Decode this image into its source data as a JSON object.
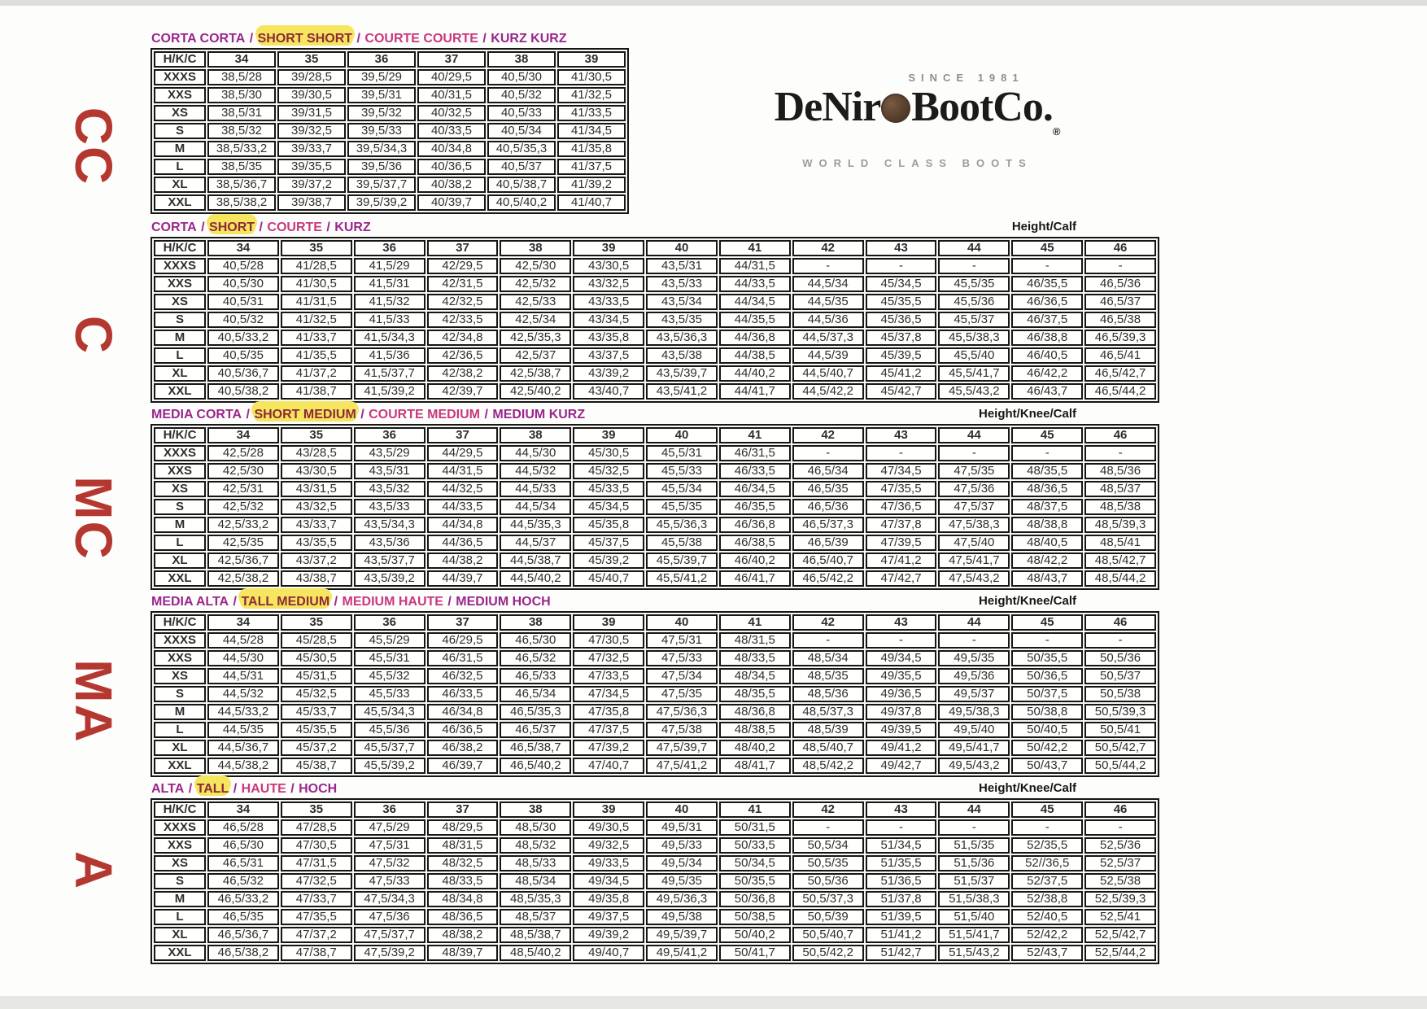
{
  "colors": {
    "title_italian": "#99268d",
    "title_english": "#8c2a38",
    "title_french": "#c9377f",
    "title_german": "#99268d",
    "highlight": "#f6e55f",
    "highlight_cell": "#f8ef9d",
    "header_text": "#203864",
    "side_label": "#b43730"
  },
  "side_labels": [
    {
      "code": "CC"
    },
    {
      "code": "C"
    },
    {
      "code": "MC"
    },
    {
      "code": "MA"
    },
    {
      "code": "A"
    }
  ],
  "logo": {
    "since": "SINCE 1981",
    "name_left": "DeNir",
    "name_right": "BootCo.",
    "reg": "®",
    "coin_icon": "coin-logo-icon",
    "tagline": "WORLD CLASS BOOTS"
  },
  "tables": [
    {
      "id": "CC",
      "title_parts": [
        {
          "text": "CORTA CORTA",
          "style": "italian",
          "highlight": false
        },
        {
          "text": "SHORT SHORT",
          "style": "english",
          "highlight": true
        },
        {
          "text": "COURTE COURTE",
          "style": "french",
          "highlight": false
        },
        {
          "text": "KURZ KURZ",
          "style": "german",
          "highlight": false
        }
      ],
      "corner_label": "H/K/C",
      "right_label": "",
      "sizes": [
        "34",
        "35",
        "36",
        "37",
        "38",
        "39"
      ],
      "rows": [
        {
          "label": "XXXS",
          "cells": [
            "38,5/28",
            "39/28,5",
            "39,5/29",
            "40/29,5",
            "40,5/30",
            "41/30,5"
          ]
        },
        {
          "label": "XXS",
          "cells": [
            "38,5/30",
            "39/30,5",
            "39,5/31",
            "40/31,5",
            "40,5/32",
            "41/32,5"
          ]
        },
        {
          "label": "XS",
          "cells": [
            "38,5/31",
            "39/31,5",
            "39,5/32",
            "40/32,5",
            "40,5/33",
            "41/33,5"
          ]
        },
        {
          "label": "S",
          "cells": [
            "38,5/32",
            "39/32,5",
            "39,5/33",
            "40/33,5",
            "40,5/34",
            "41/34,5"
          ]
        },
        {
          "label": "M",
          "cells": [
            "38,5/33,2",
            "39/33,7",
            "39,5/34,3",
            "40/34,8",
            "40,5/35,3",
            "41/35,8"
          ]
        },
        {
          "label": "L",
          "cells": [
            "38,5/35",
            "39/35,5",
            "39,5/36",
            "40/36,5",
            "40,5/37",
            "41/37,5"
          ]
        },
        {
          "label": "XL",
          "cells": [
            "38,5/36,7",
            "39/37,2",
            "39,5/37,7",
            "40/38,2",
            "40,5/38,7",
            "41/39,2"
          ]
        },
        {
          "label": "XXL",
          "cells": [
            "38,5/38,2",
            "39/38,7",
            "39,5/39,2",
            "40/39,7",
            "40,5/40,2",
            "41/40,7"
          ]
        }
      ],
      "highlight_cells": [
        [
          "XXL",
          "35"
        ],
        [
          "XXL",
          "36"
        ]
      ]
    },
    {
      "id": "C",
      "title_parts": [
        {
          "text": "CORTA",
          "style": "italian",
          "highlight": false
        },
        {
          "text": "SHORT",
          "style": "english",
          "highlight": true
        },
        {
          "text": "COURTE",
          "style": "french",
          "highlight": false
        },
        {
          "text": "KURZ",
          "style": "german",
          "highlight": false
        }
      ],
      "corner_label": "H/K/C",
      "right_label": "Height/Calf",
      "sizes": [
        "34",
        "35",
        "36",
        "37",
        "38",
        "39",
        "40",
        "41",
        "42",
        "43",
        "44",
        "45",
        "46"
      ],
      "rows": [
        {
          "label": "XXXS",
          "cells": [
            "40,5/28",
            "41/28,5",
            "41,5/29",
            "42/29,5",
            "42,5/30",
            "43/30,5",
            "43,5/31",
            "44/31,5",
            "-",
            "-",
            "-",
            "-",
            "-"
          ]
        },
        {
          "label": "XXS",
          "cells": [
            "40,5/30",
            "41/30,5",
            "41,5/31",
            "42/31,5",
            "42,5/32",
            "43/32,5",
            "43,5/33",
            "44/33,5",
            "44,5/34",
            "45/34,5",
            "45,5/35",
            "46/35,5",
            "46,5/36"
          ]
        },
        {
          "label": "XS",
          "cells": [
            "40,5/31",
            "41/31,5",
            "41,5/32",
            "42/32,5",
            "42,5/33",
            "43/33,5",
            "43,5/34",
            "44/34,5",
            "44,5/35",
            "45/35,5",
            "45,5/36",
            "46/36,5",
            "46,5/37"
          ]
        },
        {
          "label": "S",
          "cells": [
            "40,5/32",
            "41/32,5",
            "41,5/33",
            "42/33,5",
            "42,5/34",
            "43/34,5",
            "43,5/35",
            "44/35,5",
            "44,5/36",
            "45/36,5",
            "45,5/37",
            "46/37,5",
            "46,5/38"
          ]
        },
        {
          "label": "M",
          "cells": [
            "40,5/33,2",
            "41/33,7",
            "41,5/34,3",
            "42/34,8",
            "42,5/35,3",
            "43/35,8",
            "43,5/36,3",
            "44/36,8",
            "44,5/37,3",
            "45/37,8",
            "45,5/38,3",
            "46/38,8",
            "46,5/39,3"
          ]
        },
        {
          "label": "L",
          "cells": [
            "40,5/35",
            "41/35,5",
            "41,5/36",
            "42/36,5",
            "42,5/37",
            "43/37,5",
            "43,5/38",
            "44/38,5",
            "44,5/39",
            "45/39,5",
            "45,5/40",
            "46/40,5",
            "46,5/41"
          ]
        },
        {
          "label": "XL",
          "cells": [
            "40,5/36,7",
            "41/37,2",
            "41,5/37,7",
            "42/38,2",
            "42,5/38,7",
            "43/39,2",
            "43,5/39,7",
            "44/40,2",
            "44,5/40,7",
            "45/41,2",
            "45,5/41,7",
            "46/42,2",
            "46,5/42,7"
          ]
        },
        {
          "label": "XXL",
          "cells": [
            "40,5/38,2",
            "41/38,7",
            "41,5/39,2",
            "42/39,7",
            "42,5/40,2",
            "43/40,7",
            "43,5/41,2",
            "44/41,7",
            "44,5/42,2",
            "45/42,7",
            "45,5/43,2",
            "46/43,7",
            "46,5/44,2"
          ]
        }
      ],
      "highlight_cells": [
        [
          "XXL",
          "35"
        ],
        [
          "XXL",
          "36"
        ]
      ]
    },
    {
      "id": "MC",
      "title_parts": [
        {
          "text": "MEDIA CORTA",
          "style": "italian",
          "highlight": false
        },
        {
          "text": "SHORT MEDIUM",
          "style": "english",
          "highlight": true
        },
        {
          "text": "COURTE MEDIUM",
          "style": "french",
          "highlight": false
        },
        {
          "text": "MEDIUM KURZ",
          "style": "german",
          "highlight": false
        }
      ],
      "corner_label": "H/K/C",
      "right_label": "Height/Knee/Calf",
      "sizes": [
        "34",
        "35",
        "36",
        "37",
        "38",
        "39",
        "40",
        "41",
        "42",
        "43",
        "44",
        "45",
        "46"
      ],
      "rows": [
        {
          "label": "XXXS",
          "cells": [
            "42,5/28",
            "43/28,5",
            "43,5/29",
            "44/29,5",
            "44,5/30",
            "45/30,5",
            "45,5/31",
            "46/31,5",
            "-",
            "-",
            "-",
            "-",
            "-"
          ]
        },
        {
          "label": "XXS",
          "cells": [
            "42,5/30",
            "43/30,5",
            "43,5/31",
            "44/31,5",
            "44,5/32",
            "45/32,5",
            "45,5/33",
            "46/33,5",
            "46,5/34",
            "47/34,5",
            "47,5/35",
            "48/35,5",
            "48,5/36"
          ]
        },
        {
          "label": "XS",
          "cells": [
            "42,5/31",
            "43/31,5",
            "43,5/32",
            "44/32,5",
            "44,5/33",
            "45/33,5",
            "45,5/34",
            "46/34,5",
            "46,5/35",
            "47/35,5",
            "47,5/36",
            "48/36,5",
            "48,5/37"
          ]
        },
        {
          "label": "S",
          "cells": [
            "42,5/32",
            "43/32,5",
            "43,5/33",
            "44/33,5",
            "44,5/34",
            "45/34,5",
            "45,5/35",
            "46/35,5",
            "46,5/36",
            "47/36,5",
            "47,5/37",
            "48/37,5",
            "48,5/38"
          ]
        },
        {
          "label": "M",
          "cells": [
            "42,5/33,2",
            "43/33,7",
            "43,5/34,3",
            "44/34,8",
            "44,5/35,3",
            "45/35,8",
            "45,5/36,3",
            "46/36,8",
            "46,5/37,3",
            "47/37,8",
            "47,5/38,3",
            "48/38,8",
            "48,5/39,3"
          ]
        },
        {
          "label": "L",
          "cells": [
            "42,5/35",
            "43/35,5",
            "43,5/36",
            "44/36,5",
            "44,5/37",
            "45/37,5",
            "45,5/38",
            "46/38,5",
            "46,5/39",
            "47/39,5",
            "47,5/40",
            "48/40,5",
            "48,5/41"
          ]
        },
        {
          "label": "XL",
          "cells": [
            "42,5/36,7",
            "43/37,2",
            "43,5/37,7",
            "44/38,2",
            "44,5/38,7",
            "45/39,2",
            "45,5/39,7",
            "46/40,2",
            "46,5/40,7",
            "47/41,2",
            "47,5/41,7",
            "48/42,2",
            "48,5/42,7"
          ]
        },
        {
          "label": "XXL",
          "cells": [
            "42,5/38,2",
            "43/38,7",
            "43,5/39,2",
            "44/39,7",
            "44,5/40,2",
            "45/40,7",
            "45,5/41,2",
            "46/41,7",
            "46,5/42,2",
            "47/42,7",
            "47,5/43,2",
            "48/43,7",
            "48,5/44,2"
          ]
        }
      ],
      "highlight_cells": [
        [
          "XXL",
          "35"
        ]
      ]
    },
    {
      "id": "MA",
      "title_parts": [
        {
          "text": "MEDIA ALTA",
          "style": "italian",
          "highlight": false
        },
        {
          "text": "TALL MEDIUM",
          "style": "english",
          "highlight": true
        },
        {
          "text": "MEDIUM HAUTE",
          "style": "french",
          "highlight": false
        },
        {
          "text": "MEDIUM HOCH",
          "style": "german",
          "highlight": false
        }
      ],
      "corner_label": "H/K/C",
      "right_label": "Height/Knee/Calf",
      "sizes": [
        "34",
        "35",
        "36",
        "37",
        "38",
        "39",
        "40",
        "41",
        "42",
        "43",
        "44",
        "45",
        "46"
      ],
      "rows": [
        {
          "label": "XXXS",
          "cells": [
            "44,5/28",
            "45/28,5",
            "45,5/29",
            "46/29,5",
            "46,5/30",
            "47/30,5",
            "47,5/31",
            "48/31,5",
            "-",
            "-",
            "-",
            "-",
            "-"
          ]
        },
        {
          "label": "XXS",
          "cells": [
            "44,5/30",
            "45/30,5",
            "45,5/31",
            "46/31,5",
            "46,5/32",
            "47/32,5",
            "47,5/33",
            "48/33,5",
            "48,5/34",
            "49/34,5",
            "49,5/35",
            "50/35,5",
            "50,5/36"
          ]
        },
        {
          "label": "XS",
          "cells": [
            "44,5/31",
            "45/31,5",
            "45,5/32",
            "46/32,5",
            "46,5/33",
            "47/33,5",
            "47,5/34",
            "48/34,5",
            "48,5/35",
            "49/35,5",
            "49,5/36",
            "50/36,5",
            "50,5/37"
          ]
        },
        {
          "label": "S",
          "cells": [
            "44,5/32",
            "45/32,5",
            "45,5/33",
            "46/33,5",
            "46,5/34",
            "47/34,5",
            "47,5/35",
            "48/35,5",
            "48,5/36",
            "49/36,5",
            "49,5/37",
            "50/37,5",
            "50,5/38"
          ]
        },
        {
          "label": "M",
          "cells": [
            "44,5/33,2",
            "45/33,7",
            "45,5/34,3",
            "46/34,8",
            "46,5/35,3",
            "47/35,8",
            "47,5/36,3",
            "48/36,8",
            "48,5/37,3",
            "49/37,8",
            "49,5/38,3",
            "50/38,8",
            "50,5/39,3"
          ]
        },
        {
          "label": "L",
          "cells": [
            "44,5/35",
            "45/35,5",
            "45,5/36",
            "46/36,5",
            "46,5/37",
            "47/37,5",
            "47,5/38",
            "48/38,5",
            "48,5/39",
            "49/39,5",
            "49,5/40",
            "50/40,5",
            "50,5/41"
          ]
        },
        {
          "label": "XL",
          "cells": [
            "44,5/36,7",
            "45/37,2",
            "45,5/37,7",
            "46/38,2",
            "46,5/38,7",
            "47/39,2",
            "47,5/39,7",
            "48/40,2",
            "48,5/40,7",
            "49/41,2",
            "49,5/41,7",
            "50/42,2",
            "50,5/42,7"
          ]
        },
        {
          "label": "XXL",
          "cells": [
            "44,5/38,2",
            "45/38,7",
            "45,5/39,2",
            "46/39,7",
            "46,5/40,2",
            "47/40,7",
            "47,5/41,2",
            "48/41,7",
            "48,5/42,2",
            "49/42,7",
            "49,5/43,2",
            "50/43,7",
            "50,5/44,2"
          ]
        }
      ],
      "highlight_cells": [
        [
          "XXL",
          "34"
        ]
      ]
    },
    {
      "id": "A",
      "title_parts": [
        {
          "text": "ALTA",
          "style": "italian",
          "highlight": false
        },
        {
          "text": "TALL",
          "style": "english",
          "highlight": true
        },
        {
          "text": "HAUTE",
          "style": "french",
          "highlight": false
        },
        {
          "text": "HOCH",
          "style": "german",
          "highlight": false
        }
      ],
      "corner_label": "H/K/C",
      "right_label": "Height/Knee/Calf",
      "sizes": [
        "34",
        "35",
        "36",
        "37",
        "38",
        "39",
        "40",
        "41",
        "42",
        "43",
        "44",
        "45",
        "46"
      ],
      "rows": [
        {
          "label": "XXXS",
          "cells": [
            "46,5/28",
            "47/28,5",
            "47,5/29",
            "48/29,5",
            "48,5/30",
            "49/30,5",
            "49,5/31",
            "50/31,5",
            "-",
            "-",
            "-",
            "-",
            "-"
          ]
        },
        {
          "label": "XXS",
          "cells": [
            "46,5/30",
            "47/30,5",
            "47,5/31",
            "48/31,5",
            "48,5/32",
            "49/32,5",
            "49,5/33",
            "50/33,5",
            "50,5/34",
            "51/34,5",
            "51,5/35",
            "52/35,5",
            "52,5/36"
          ]
        },
        {
          "label": "XS",
          "cells": [
            "46,5/31",
            "47/31,5",
            "47,5/32",
            "48/32,5",
            "48,5/33",
            "49/33,5",
            "49,5/34",
            "50/34,5",
            "50,5/35",
            "51/35,5",
            "51,5/36",
            "52//36,5",
            "52,5/37"
          ]
        },
        {
          "label": "S",
          "cells": [
            "46,5/32",
            "47/32,5",
            "47,5/33",
            "48/33,5",
            "48,5/34",
            "49/34,5",
            "49,5/35",
            "50/35,5",
            "50,5/36",
            "51/36,5",
            "51,5/37",
            "52/37,5",
            "52,5/38"
          ]
        },
        {
          "label": "M",
          "cells": [
            "46,5/33,2",
            "47/33,7",
            "47,5/34,3",
            "48/34,8",
            "48,5/35,3",
            "49/35,8",
            "49,5/36,3",
            "50/36,8",
            "50,5/37,3",
            "51/37,8",
            "51,5/38,3",
            "52/38,8",
            "52,5/39,3"
          ]
        },
        {
          "label": "L",
          "cells": [
            "46,5/35",
            "47/35,5",
            "47,5/36",
            "48/36,5",
            "48,5/37",
            "49/37,5",
            "49,5/38",
            "50/38,5",
            "50,5/39",
            "51/39,5",
            "51,5/40",
            "52/40,5",
            "52,5/41"
          ]
        },
        {
          "label": "XL",
          "cells": [
            "46,5/36,7",
            "47/37,2",
            "47,5/37,7",
            "48/38,2",
            "48,5/38,7",
            "49/39,2",
            "49,5/39,7",
            "50/40,2",
            "50,5/40,7",
            "51/41,2",
            "51,5/41,7",
            "52/42,2",
            "52,5/42,7"
          ]
        },
        {
          "label": "XXL",
          "cells": [
            "46,5/38,2",
            "47/38,7",
            "47,5/39,2",
            "48/39,7",
            "48,5/40,2",
            "49/40,7",
            "49,5/41,2",
            "50/41,7",
            "50,5/42,2",
            "51/42,7",
            "51,5/43,2",
            "52/43,7",
            "52,5/44,2"
          ]
        }
      ],
      "highlight_cells": []
    }
  ]
}
